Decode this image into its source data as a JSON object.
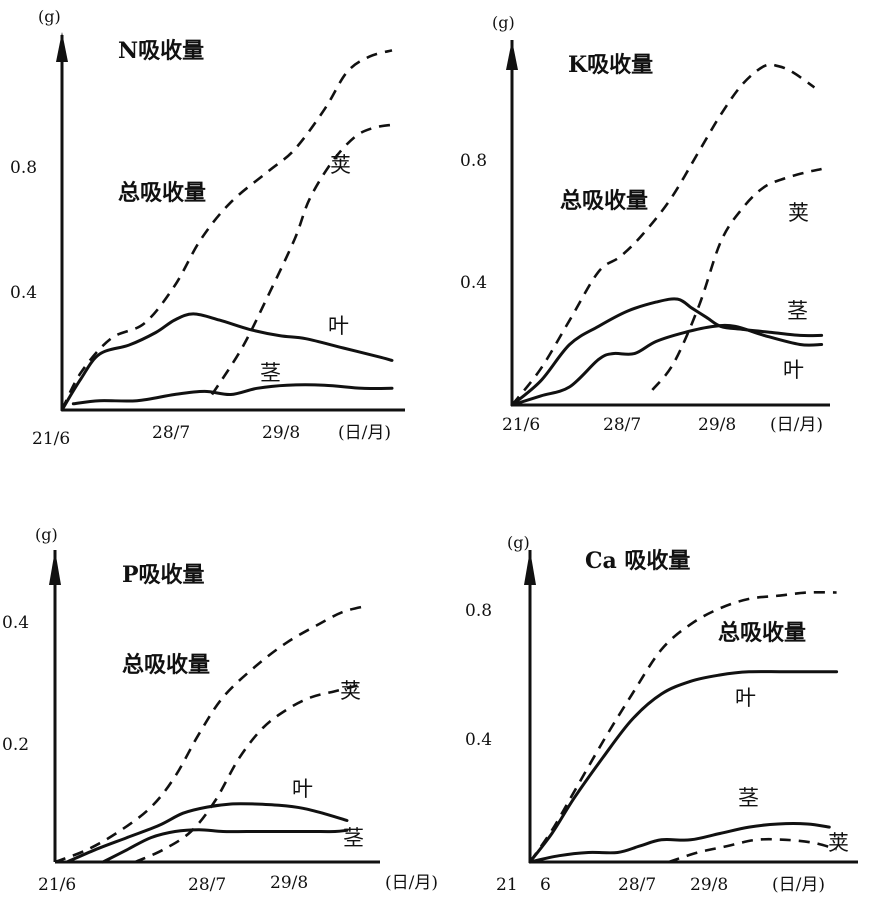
{
  "chart_data": [
    {
      "type": "line",
      "title": "N吸收量",
      "ylabel": "(g)",
      "xlabel": "(日/月)",
      "x_ticks": [
        {
          "label": "21/6",
          "day": 0
        },
        {
          "label": "28/7",
          "day": 37
        },
        {
          "label": "29/8",
          "day": 69
        }
      ],
      "y_ticks": [
        {
          "label": "0.4",
          "value": 0.4
        },
        {
          "label": "0.8",
          "value": 0.8
        }
      ],
      "xlim": [
        0,
        100
      ],
      "ylim": [
        0,
        1.2
      ],
      "series": [
        {
          "name": "总吸收量",
          "style": "dashed",
          "x": [
            0,
            5,
            13,
            22,
            30,
            37,
            45,
            55,
            62,
            70,
            76,
            82,
            88
          ],
          "y": [
            0,
            0.12,
            0.23,
            0.28,
            0.4,
            0.55,
            0.67,
            0.77,
            0.84,
            0.97,
            1.09,
            1.14,
            1.16
          ]
        },
        {
          "name": "荚",
          "style": "dashed",
          "x": [
            40,
            48,
            55,
            62,
            66,
            72,
            78,
            83,
            88
          ],
          "y": [
            0.05,
            0.2,
            0.37,
            0.55,
            0.68,
            0.8,
            0.88,
            0.91,
            0.92
          ]
        },
        {
          "name": "叶",
          "style": "solid",
          "x": [
            0,
            5,
            10,
            18,
            25,
            30,
            35,
            42,
            50,
            58,
            65,
            75,
            85,
            88
          ],
          "y": [
            0,
            0.1,
            0.18,
            0.21,
            0.25,
            0.29,
            0.31,
            0.29,
            0.26,
            0.24,
            0.23,
            0.2,
            0.17,
            0.16
          ]
        },
        {
          "name": "茎",
          "style": "solid",
          "x": [
            3,
            10,
            20,
            30,
            38,
            45,
            52,
            60,
            70,
            80,
            88
          ],
          "y": [
            0.02,
            0.03,
            0.03,
            0.05,
            0.06,
            0.05,
            0.07,
            0.08,
            0.08,
            0.07,
            0.07
          ]
        }
      ],
      "labels": {
        "total": "总吸收量",
        "pod": "荚",
        "leaf": "叶",
        "stem": "茎"
      }
    },
    {
      "type": "line",
      "title": "K吸收量",
      "ylabel": "(g)",
      "xlabel": "(日/月)",
      "x_ticks": [
        {
          "label": "21/6",
          "day": 0
        },
        {
          "label": "28/7",
          "day": 37
        },
        {
          "label": "29/8",
          "day": 69
        }
      ],
      "y_ticks": [
        {
          "label": "0.4",
          "value": 0.4
        },
        {
          "label": "0.8",
          "value": 0.8
        }
      ],
      "xlim": [
        0,
        100
      ],
      "ylim": [
        0,
        1.2
      ],
      "series": [
        {
          "name": "总吸收量",
          "style": "dashed",
          "x": [
            0,
            8,
            16,
            24,
            30,
            36,
            44,
            52,
            58,
            64,
            70,
            74,
            78,
            84
          ],
          "y": [
            0,
            0.12,
            0.28,
            0.44,
            0.49,
            0.56,
            0.68,
            0.84,
            0.96,
            1.06,
            1.12,
            1.12,
            1.1,
            1.05
          ]
        },
        {
          "name": "荚",
          "style": "dashed",
          "x": [
            39,
            45,
            52,
            58,
            64,
            70,
            76,
            82,
            86
          ],
          "y": [
            0.05,
            0.14,
            0.33,
            0.54,
            0.65,
            0.72,
            0.75,
            0.77,
            0.78
          ]
        },
        {
          "name": "茎",
          "style": "solid",
          "x": [
            0,
            8,
            16,
            24,
            32,
            40,
            46,
            50,
            54,
            58,
            64,
            72,
            80,
            86
          ],
          "y": [
            0,
            0.08,
            0.2,
            0.26,
            0.31,
            0.34,
            0.35,
            0.32,
            0.29,
            0.26,
            0.25,
            0.24,
            0.23,
            0.23
          ]
        },
        {
          "name": "叶",
          "style": "solid",
          "x": [
            0,
            8,
            16,
            24,
            28,
            34,
            40,
            48,
            56,
            62,
            70,
            80,
            86
          ],
          "y": [
            0,
            0.03,
            0.06,
            0.15,
            0.17,
            0.17,
            0.21,
            0.24,
            0.26,
            0.26,
            0.23,
            0.2,
            0.2
          ]
        }
      ],
      "labels": {
        "total": "总吸收量",
        "pod": "荚",
        "stem": "茎",
        "leaf": "叶"
      }
    },
    {
      "type": "line",
      "title": "P吸收量",
      "ylabel": "(g)",
      "xlabel": "(日/月)",
      "x_ticks": [
        {
          "label": "21/6",
          "day": 0
        },
        {
          "label": "28/7",
          "day": 37
        },
        {
          "label": "29/8",
          "day": 69
        }
      ],
      "y_ticks": [
        {
          "label": "0.2",
          "value": 0.2
        },
        {
          "label": "0.4",
          "value": 0.4
        }
      ],
      "xlim": [
        0,
        90
      ],
      "ylim": [
        0,
        0.5
      ],
      "series": [
        {
          "name": "总吸收量",
          "style": "dashed",
          "x": [
            0,
            8,
            16,
            24,
            30,
            36,
            42,
            50,
            58,
            66,
            72,
            78
          ],
          "y": [
            0,
            0.02,
            0.05,
            0.09,
            0.14,
            0.21,
            0.27,
            0.32,
            0.36,
            0.39,
            0.41,
            0.42
          ]
        },
        {
          "name": "荚",
          "style": "dashed",
          "x": [
            20,
            27,
            34,
            40,
            46,
            52,
            58,
            64,
            70,
            76
          ],
          "y": [
            0,
            0.02,
            0.05,
            0.1,
            0.17,
            0.22,
            0.25,
            0.27,
            0.28,
            0.29
          ]
        },
        {
          "name": "叶",
          "style": "solid",
          "x": [
            3,
            10,
            18,
            26,
            32,
            38,
            44,
            50,
            56,
            62,
            68,
            73
          ],
          "y": [
            0,
            0.02,
            0.04,
            0.06,
            0.08,
            0.09,
            0.095,
            0.095,
            0.093,
            0.088,
            0.078,
            0.068
          ]
        },
        {
          "name": "茎",
          "style": "solid",
          "x": [
            12,
            18,
            24,
            30,
            36,
            42,
            48,
            56,
            64,
            70,
            73
          ],
          "y": [
            0,
            0.02,
            0.04,
            0.05,
            0.053,
            0.05,
            0.05,
            0.05,
            0.05,
            0.05,
            0.052
          ]
        }
      ],
      "labels": {
        "total": "总吸收量",
        "pod": "荚",
        "leaf": "叶",
        "stem": "茎"
      }
    },
    {
      "type": "line",
      "title": "Ca 吸收量",
      "ylabel": "(g)",
      "xlabel": "(日/月)",
      "x_ticks": [
        {
          "label": "21",
          "day": 0
        },
        {
          "label": "6",
          "day": 4
        },
        {
          "label": "28/7",
          "day": 37
        },
        {
          "label": "29/8",
          "day": 69
        }
      ],
      "y_ticks": [
        {
          "label": "0.4",
          "value": 0.4
        },
        {
          "label": "0.8",
          "value": 0.8
        }
      ],
      "xlim": [
        0,
        100
      ],
      "ylim": [
        0,
        1.0
      ],
      "series": [
        {
          "name": "总吸收量",
          "style": "dashed",
          "x": [
            0,
            6,
            12,
            20,
            28,
            36,
            44,
            52,
            60,
            68,
            76,
            84
          ],
          "y": [
            0,
            0.1,
            0.22,
            0.38,
            0.53,
            0.67,
            0.75,
            0.8,
            0.83,
            0.84,
            0.85,
            0.85
          ]
        },
        {
          "name": "叶",
          "style": "solid",
          "x": [
            0,
            6,
            12,
            20,
            28,
            36,
            44,
            52,
            60,
            70,
            84
          ],
          "y": [
            0,
            0.09,
            0.2,
            0.33,
            0.45,
            0.53,
            0.57,
            0.59,
            0.6,
            0.6,
            0.6
          ]
        },
        {
          "name": "茎",
          "style": "solid",
          "x": [
            0,
            8,
            16,
            24,
            30,
            36,
            44,
            52,
            60,
            68,
            76,
            82
          ],
          "y": [
            0,
            0.02,
            0.03,
            0.03,
            0.05,
            0.07,
            0.07,
            0.09,
            0.11,
            0.12,
            0.12,
            0.11
          ]
        },
        {
          "name": "荚",
          "style": "dashed",
          "x": [
            38,
            46,
            54,
            62,
            70,
            78,
            84
          ],
          "y": [
            0,
            0.03,
            0.05,
            0.07,
            0.07,
            0.06,
            0.04
          ]
        }
      ],
      "labels": {
        "total": "总吸收量",
        "leaf": "叶",
        "stem": "茎",
        "pod": "荚"
      }
    }
  ]
}
